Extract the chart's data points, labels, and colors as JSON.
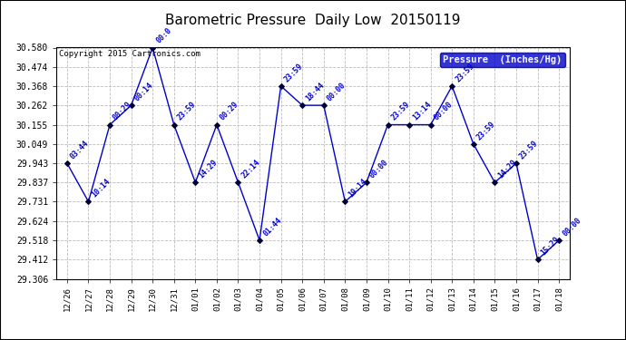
{
  "title": "Barometric Pressure  Daily Low  20150119",
  "copyright": "Copyright 2015 Cartronics.com",
  "legend_label": "Pressure  (Inches/Hg)",
  "x_labels": [
    "12/26",
    "12/27",
    "12/28",
    "12/29",
    "12/30",
    "12/31",
    "01/01",
    "01/02",
    "01/03",
    "01/04",
    "01/05",
    "01/06",
    "01/07",
    "01/08",
    "01/09",
    "01/10",
    "01/11",
    "01/12",
    "01/13",
    "01/14",
    "01/15",
    "01/16",
    "01/17",
    "01/18"
  ],
  "x_indices": [
    0,
    1,
    2,
    3,
    4,
    5,
    6,
    7,
    8,
    9,
    10,
    11,
    12,
    13,
    14,
    15,
    16,
    17,
    18,
    19,
    20,
    21,
    22,
    23
  ],
  "y_values": [
    29.943,
    29.731,
    30.155,
    30.262,
    30.58,
    30.155,
    29.837,
    30.155,
    29.837,
    29.518,
    30.368,
    30.262,
    30.262,
    29.731,
    29.837,
    30.155,
    30.155,
    30.155,
    30.368,
    30.049,
    29.837,
    29.943,
    29.412,
    29.518
  ],
  "point_labels": [
    "03:44",
    "10:14",
    "00:29",
    "00:14",
    "00:0",
    "23:59",
    "14:29",
    "00:29",
    "22:14",
    "01:44",
    "23:59",
    "18:44",
    "00:00",
    "19:14",
    "00:00",
    "23:59",
    "13:14",
    "00:00",
    "23:59",
    "23:59",
    "14:29",
    "23:59",
    "15:29",
    "00:00"
  ],
  "line_color": "#0000cc",
  "marker_color": "#000033",
  "bg_color": "#ffffff",
  "plot_bg_color": "#ffffff",
  "grid_color": "#bbbbbb",
  "title_color": "#000000",
  "label_color": "#0000cc",
  "legend_bg": "#0000cc",
  "legend_text": "#ffffff",
  "ylim_min": 29.306,
  "ylim_max": 30.58,
  "yticks": [
    29.306,
    29.412,
    29.518,
    29.624,
    29.731,
    29.837,
    29.943,
    30.049,
    30.155,
    30.262,
    30.368,
    30.474,
    30.58
  ]
}
